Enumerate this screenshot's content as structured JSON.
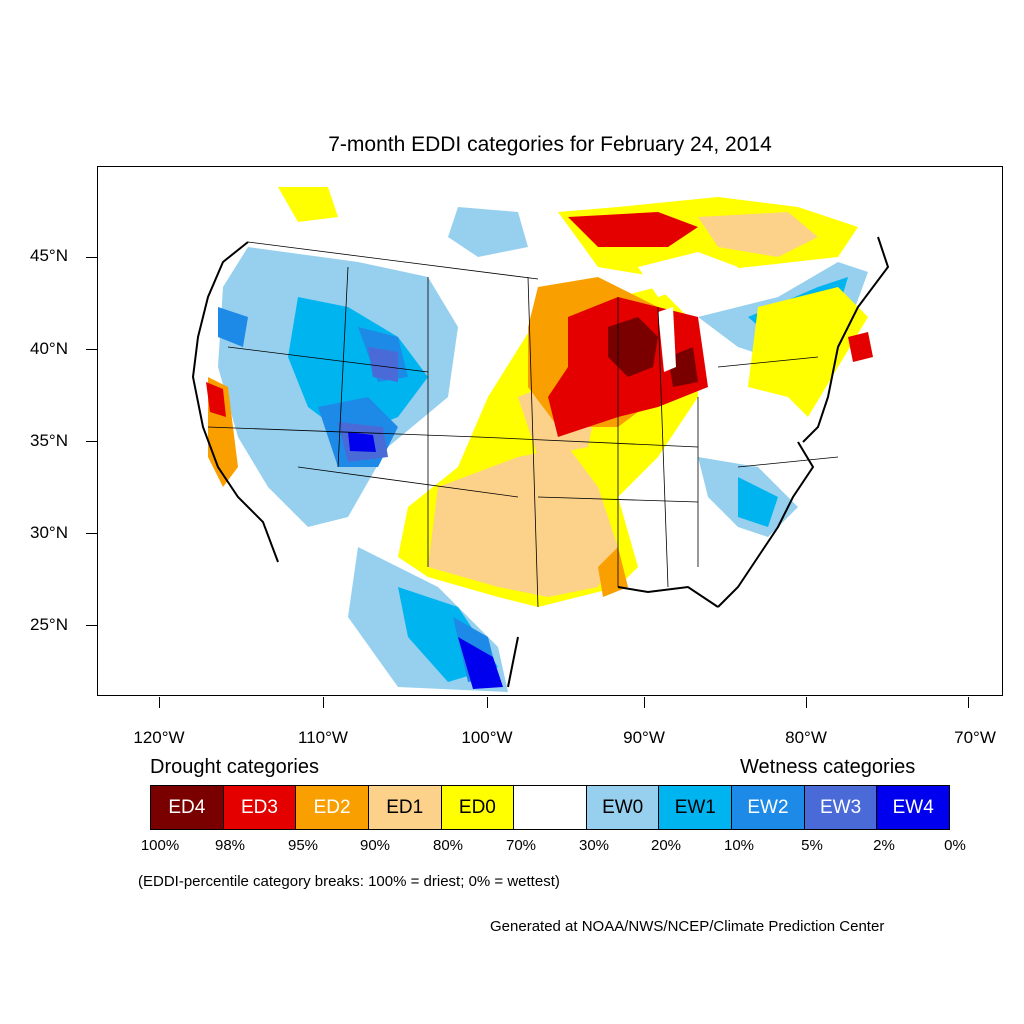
{
  "title": "7-month EDDI categories for February 24, 2014",
  "lat_labels": [
    "45°N",
    "40°N",
    "35°N",
    "30°N",
    "25°N"
  ],
  "lon_labels": [
    "120°W",
    "110°W",
    "100°W",
    "90°W",
    "80°W",
    "70°W"
  ],
  "legend": {
    "drought_heading": "Drought categories",
    "wetness_heading": "Wetness categories",
    "categories": [
      {
        "label": "ED4",
        "color": "#7a0000",
        "text_color": "#ffffff"
      },
      {
        "label": "ED3",
        "color": "#e50000",
        "text_color": "#ffffff"
      },
      {
        "label": "ED2",
        "color": "#f9a000",
        "text_color": "#ffffff"
      },
      {
        "label": "ED1",
        "color": "#fcd28a",
        "text_color": "#000000"
      },
      {
        "label": "ED0",
        "color": "#ffff00",
        "text_color": "#000000"
      },
      {
        "label": "",
        "color": "#ffffff",
        "text_color": "#000000"
      },
      {
        "label": "EW0",
        "color": "#96d0ee",
        "text_color": "#000000"
      },
      {
        "label": "EW1",
        "color": "#00b4f0",
        "text_color": "#000000"
      },
      {
        "label": "EW2",
        "color": "#1e8ae8",
        "text_color": "#ffffff"
      },
      {
        "label": "EW3",
        "color": "#4a6ad8",
        "text_color": "#ffffff"
      },
      {
        "label": "EW4",
        "color": "#0000ee",
        "text_color": "#ffffff"
      }
    ],
    "percentiles": [
      "100%",
      "98%",
      "95%",
      "90%",
      "80%",
      "70%",
      "30%",
      "20%",
      "10%",
      "5%",
      "2%",
      "0%"
    ]
  },
  "note": "(EDDI-percentile category breaks: 100% = driest; 0% = wettest)",
  "credit": "Generated at NOAA/NWS/NCEP/Climate Prediction Center"
}
